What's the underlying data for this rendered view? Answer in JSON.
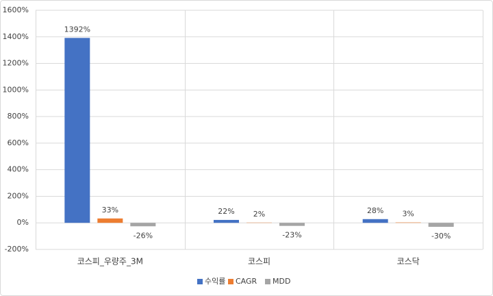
{
  "chart_data": {
    "type": "bar",
    "categories": [
      "코스피_우량주_3M",
      "코스피",
      "코스닥"
    ],
    "series": [
      {
        "name": "수익률",
        "color": "#4472c4",
        "values": [
          1392,
          22,
          28
        ],
        "value_labels": [
          "1392%",
          "22%",
          "28%"
        ]
      },
      {
        "name": "CAGR",
        "color": "#ed7d31",
        "values": [
          33,
          2,
          3
        ],
        "value_labels": [
          "33%",
          "2%",
          "3%"
        ]
      },
      {
        "name": "MDD",
        "color": "#a5a5a5",
        "values": [
          -26,
          -23,
          -30
        ],
        "value_labels": [
          "-26%",
          "-23%",
          "-30%"
        ]
      }
    ],
    "ylim": [
      -200,
      1600
    ],
    "yticks": [
      {
        "value": -200,
        "label": "-200%"
      },
      {
        "value": 0,
        "label": "0%"
      },
      {
        "value": 200,
        "label": "200%"
      },
      {
        "value": 400,
        "label": "400%"
      },
      {
        "value": 600,
        "label": "600%"
      },
      {
        "value": 800,
        "label": "800%"
      },
      {
        "value": 1000,
        "label": "1000%"
      },
      {
        "value": 1200,
        "label": "1200%"
      },
      {
        "value": 1400,
        "label": "1400%"
      },
      {
        "value": 1600,
        "label": "1600%"
      }
    ],
    "grid": true,
    "legend": "bottom"
  }
}
